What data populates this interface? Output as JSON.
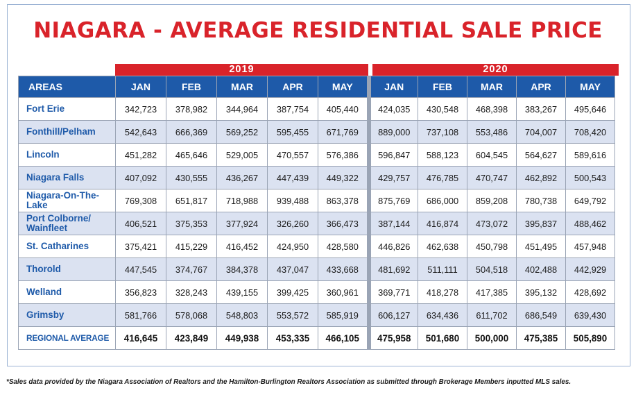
{
  "title": "NIAGARA - AVERAGE RESIDENTIAL SALE PRICE",
  "footnote": "*Sales data provided by the Niagara Association of Realtors and the Hamilton-Burlington Realtors Association as submitted through Brokerage Members inputted MLS sales.",
  "colors": {
    "title_red": "#d9232a",
    "header_blue": "#1e5aa9",
    "row_alt": "#dbe2f1"
  },
  "chart_data": {
    "type": "table",
    "title": "NIAGARA - AVERAGE RESIDENTIAL SALE PRICE",
    "years": [
      "2019",
      "2020"
    ],
    "area_header": "AREAS",
    "months": [
      "JAN",
      "FEB",
      "MAR",
      "APR",
      "MAY"
    ],
    "rows": [
      {
        "area": "Fort Erie",
        "y2019": [
          "342,723",
          "378,982",
          "344,964",
          "387,754",
          "405,440"
        ],
        "y2020": [
          "424,035",
          "430,548",
          "468,398",
          "383,267",
          "495,646"
        ]
      },
      {
        "area": "Fonthill/Pelham",
        "y2019": [
          "542,643",
          "666,369",
          "569,252",
          "595,455",
          "671,769"
        ],
        "y2020": [
          "889,000",
          "737,108",
          "553,486",
          "704,007",
          "708,420"
        ]
      },
      {
        "area": "Lincoln",
        "y2019": [
          "451,282",
          "465,646",
          "529,005",
          "470,557",
          "576,386"
        ],
        "y2020": [
          "596,847",
          "588,123",
          "604,545",
          "564,627",
          "589,616"
        ]
      },
      {
        "area": "Niagara Falls",
        "y2019": [
          "407,092",
          "430,555",
          "436,267",
          "447,439",
          "449,322"
        ],
        "y2020": [
          "429,757",
          "476,785",
          "470,747",
          "462,892",
          "500,543"
        ]
      },
      {
        "area": "Niagara-On-The-Lake",
        "y2019": [
          "769,308",
          "651,817",
          "718,988",
          "939,488",
          "863,378"
        ],
        "y2020": [
          "875,769",
          "686,000",
          "859,208",
          "780,738",
          "649,792"
        ]
      },
      {
        "area": "Port Colborne/ Wainfleet",
        "y2019": [
          "406,521",
          "375,353",
          "377,924",
          "326,260",
          "366,473"
        ],
        "y2020": [
          "387,144",
          "416,874",
          "473,072",
          "395,837",
          "488,462"
        ]
      },
      {
        "area": "St. Catharines",
        "y2019": [
          "375,421",
          "415,229",
          "416,452",
          "424,950",
          "428,580"
        ],
        "y2020": [
          "446,826",
          "462,638",
          "450,798",
          "451,495",
          "457,948"
        ]
      },
      {
        "area": "Thorold",
        "y2019": [
          "447,545",
          "374,767",
          "384,378",
          "437,047",
          "433,668"
        ],
        "y2020": [
          "481,692",
          "511,111",
          "504,518",
          "402,488",
          "442,929"
        ]
      },
      {
        "area": "Welland",
        "y2019": [
          "356,823",
          "328,243",
          "439,155",
          "399,425",
          "360,961"
        ],
        "y2020": [
          "369,771",
          "418,278",
          "417,385",
          "395,132",
          "428,692"
        ]
      },
      {
        "area": "Grimsby",
        "y2019": [
          "581,766",
          "578,068",
          "548,803",
          "553,572",
          "585,919"
        ],
        "y2020": [
          "606,127",
          "634,436",
          "611,702",
          "686,549",
          "639,430"
        ]
      }
    ],
    "average": {
      "area": "REGIONAL AVERAGE",
      "y2019": [
        "416,645",
        "423,849",
        "449,938",
        "453,335",
        "466,105"
      ],
      "y2020": [
        "475,958",
        "501,680",
        "500,000",
        "475,385",
        "505,890"
      ]
    }
  }
}
